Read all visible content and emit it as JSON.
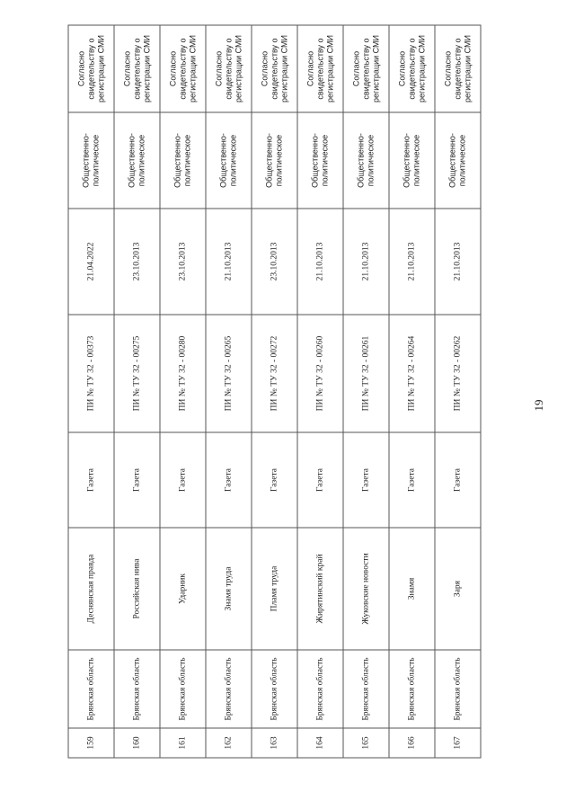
{
  "page_number": "19",
  "rows": [
    {
      "num": "159",
      "region": "Брянская область",
      "title": "Деснянская правда",
      "type": "Газета",
      "reg": "ПИ № ТУ 32 - 00373",
      "date": "21.04.2022",
      "spec": "Общественно-политическое",
      "note": "Согласно свидетельству о регистрации СМИ"
    },
    {
      "num": "160",
      "region": "Брянская область",
      "title": "Российская нива",
      "type": "Газета",
      "reg": "ПИ № ТУ 32 - 00275",
      "date": "23.10.2013",
      "spec": "Общественно-политическое",
      "note": "Согласно свидетельству о регистрации СМИ"
    },
    {
      "num": "161",
      "region": "Брянская область",
      "title": "Ударник",
      "type": "Газета",
      "reg": "ПИ № ТУ 32 - 00280",
      "date": "23.10.2013",
      "spec": "Общественно-политическое",
      "note": "Согласно свидетельству о регистрации СМИ"
    },
    {
      "num": "162",
      "region": "Брянская область",
      "title": "Знамя труда",
      "type": "Газета",
      "reg": "ПИ № ТУ 32 - 00265",
      "date": "21.10.2013",
      "spec": "Общественно-политическое",
      "note": "Согласно свидетельству о регистрации СМИ"
    },
    {
      "num": "163",
      "region": "Брянская область",
      "title": "Пламя труда",
      "type": "Газета",
      "reg": "ПИ № ТУ 32 - 00272",
      "date": "23.10.2013",
      "spec": "Общественно-политическое",
      "note": "Согласно свидетельству о регистрации СМИ"
    },
    {
      "num": "164",
      "region": "Брянская область",
      "title": "Жирятинский край",
      "type": "Газета",
      "reg": "ПИ № ТУ 32 - 00260",
      "date": "21.10.2013",
      "spec": "Общественно-политическое",
      "note": "Согласно свидетельству о регистрации СМИ"
    },
    {
      "num": "165",
      "region": "Брянская область",
      "title": "Жуковские новости",
      "type": "Газета",
      "reg": "ПИ № ТУ 32 - 00261",
      "date": "21.10.2013",
      "spec": "Общественно-политическое",
      "note": "Согласно свидетельству о регистрации СМИ"
    },
    {
      "num": "166",
      "region": "Брянская область",
      "title": "Знамя",
      "type": "Газета",
      "reg": "ПИ № ТУ 32 - 00264",
      "date": "21.10.2013",
      "spec": "Общественно-политическое",
      "note": "Согласно свидетельству о регистрации СМИ"
    },
    {
      "num": "167",
      "region": "Брянская область",
      "title": "Заря",
      "type": "Газета",
      "reg": "ПИ № ТУ 32 - 00262",
      "date": "21.10.2013",
      "spec": "Общественно-политическое",
      "note": "Согласно свидетельству о регистрации СМИ"
    }
  ]
}
